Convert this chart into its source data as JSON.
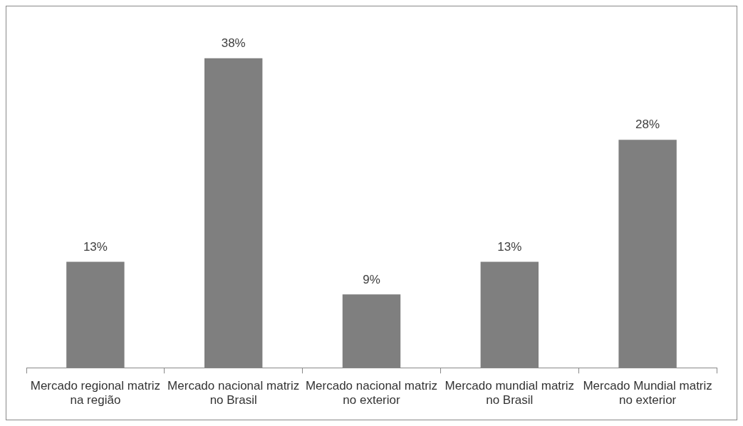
{
  "chart_data": {
    "type": "bar",
    "categories": [
      "Mercado regional matriz na região",
      "Mercado nacional matriz no Brasil",
      "Mercado nacional matriz no exterior",
      "Mercado mundial matriz no Brasil",
      "Mercado Mundial matriz no exterior"
    ],
    "values": [
      13,
      38,
      9,
      13,
      28
    ],
    "value_labels": [
      "13%",
      "38%",
      "9%",
      "13%",
      "28%"
    ],
    "color": "#7f7f7f",
    "grid": false,
    "legend": false
  }
}
